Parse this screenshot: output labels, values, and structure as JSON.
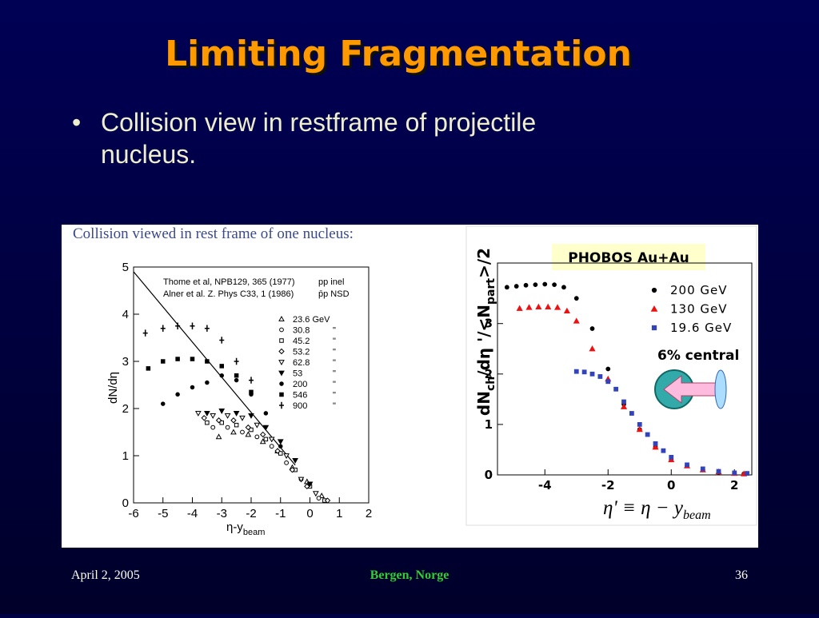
{
  "title": "Limiting Fragmentation",
  "bullets": [
    "Collision view in restframe of projectile nucleus."
  ],
  "footer": {
    "date": "April 2, 2005",
    "venue": "Bergen, Norge",
    "page": "36"
  },
  "chart_data": [
    {
      "type": "scatter",
      "caption": "Collision viewed in rest frame of one nucleus:",
      "xlabel": "η-y",
      "xlabel_sub": "beam",
      "ylabel": "dN/dη",
      "xlim": [
        -6,
        2
      ],
      "ylim": [
        0,
        5
      ],
      "xticks": [
        -6,
        -5,
        -4,
        -3,
        -2,
        -1,
        0,
        1,
        2
      ],
      "yticks": [
        0,
        1,
        2,
        3,
        4,
        5
      ],
      "notes": [
        {
          "ref": "Thome et al, NPB129, 365 (1977)",
          "system": "pp inel"
        },
        {
          "ref": "Alner et al. Z. Phys C33, 1 (1986)",
          "system": "p̄p NSD"
        }
      ],
      "legend_ditto": "\"",
      "line": {
        "x": [
          -6,
          -0.5
        ],
        "y": [
          4.9,
          0.8
        ]
      },
      "series": [
        {
          "name": "23.6 GeV",
          "marker": "triangle-up",
          "color": "#000000",
          "x": [
            -3.1,
            -2.6,
            -2.1,
            -1.6,
            -1.1,
            -0.6,
            -0.1,
            0.4
          ],
          "y": [
            1.4,
            1.5,
            1.45,
            1.3,
            1.1,
            0.75,
            0.45,
            0.15
          ]
        },
        {
          "name": "30.8",
          "marker": "circle",
          "color": "#000000",
          "x": [
            -3.3,
            -2.8,
            -2.3,
            -1.8,
            -1.3,
            -0.8,
            -0.3,
            0.3
          ],
          "y": [
            1.6,
            1.6,
            1.5,
            1.4,
            1.2,
            0.85,
            0.5,
            0.1
          ]
        },
        {
          "name": "45.2",
          "marker": "square",
          "color": "#000000",
          "x": [
            -3.5,
            -3,
            -2.5,
            -2,
            -1.5,
            -1,
            -0.5,
            0,
            0.5
          ],
          "y": [
            1.7,
            1.7,
            1.65,
            1.55,
            1.35,
            1.05,
            0.7,
            0.35,
            0.05
          ]
        },
        {
          "name": "53.2",
          "marker": "diamond",
          "color": "#000000",
          "x": [
            -3.6,
            -3.1,
            -2.6,
            -2.1,
            -1.6,
            -1.1,
            -0.6,
            -0.1,
            0.6
          ],
          "y": [
            1.8,
            1.75,
            1.75,
            1.6,
            1.45,
            1.1,
            0.7,
            0.35,
            0.05
          ]
        },
        {
          "name": "62.8",
          "marker": "triangle-down",
          "color": "#000000",
          "x": [
            -3.8,
            -3.3,
            -2.8,
            -2.3,
            -1.8,
            -1.3,
            -0.8,
            -0.3,
            0.2
          ],
          "y": [
            1.9,
            1.85,
            1.85,
            1.8,
            1.65,
            1.35,
            1.0,
            0.5,
            0.2
          ]
        },
        {
          "name": "53",
          "marker": "triangle-down-filled",
          "color": "#000000",
          "x": [
            -3.5,
            -3,
            -2.5,
            -2,
            -1.5,
            -1,
            -0.5,
            0
          ],
          "y": [
            1.9,
            1.95,
            1.9,
            1.85,
            1.6,
            1.3,
            0.9,
            0.4
          ]
        },
        {
          "name": "200",
          "marker": "dot",
          "color": "#000000",
          "x": [
            -5,
            -4.5,
            -4,
            -3.5,
            -3,
            -2.5,
            -2,
            -1.5,
            -1
          ],
          "y": [
            2.1,
            2.3,
            2.45,
            2.55,
            2.7,
            2.6,
            2.3,
            1.9,
            1.2
          ]
        },
        {
          "name": "546",
          "marker": "square-filled",
          "color": "#000000",
          "x": [
            -5.5,
            -5,
            -4.5,
            -4,
            -3.5,
            -3,
            -2.5,
            -2
          ],
          "y": [
            2.85,
            3.0,
            3.05,
            3.05,
            3.0,
            2.9,
            2.7,
            2.35
          ]
        },
        {
          "name": "900",
          "marker": "star",
          "color": "#000000",
          "x": [
            -5.6,
            -5,
            -4.5,
            -4,
            -3.5,
            -3,
            -2.5,
            -2
          ],
          "y": [
            3.6,
            3.7,
            3.75,
            3.75,
            3.7,
            3.45,
            3.0,
            2.6
          ]
        }
      ]
    },
    {
      "type": "scatter",
      "label": "PHOBOS Au+Au",
      "ylabel_parts": [
        "dN",
        "ch",
        "/dη '/<N",
        "part",
        ">/2"
      ],
      "formula": "η' ≡ η − y",
      "formula_sub": "beam",
      "annotation": "6% central",
      "xlim": [
        -5.5,
        2.55
      ],
      "ylim": [
        0,
        4.2
      ],
      "xticks": [
        -4,
        -2,
        0,
        2
      ],
      "yticks": [
        0,
        1,
        2,
        3
      ],
      "series": [
        {
          "name": "200 GeV",
          "marker": "dot",
          "color": "#000000",
          "x": [
            -5.2,
            -4.9,
            -4.6,
            -4.3,
            -4,
            -3.7,
            -3.4,
            -3,
            -2.5,
            -2,
            -1.5,
            -1,
            -0.5,
            0,
            0.5,
            1,
            1.5,
            2,
            2.3
          ],
          "y": [
            3.72,
            3.74,
            3.76,
            3.77,
            3.78,
            3.77,
            3.72,
            3.5,
            2.9,
            2.1,
            1.4,
            0.9,
            0.55,
            0.3,
            0.18,
            0.1,
            0.05,
            0.03,
            0.02
          ]
        },
        {
          "name": "130 GeV",
          "marker": "triangle-up-filled",
          "color": "#ee1111",
          "x": [
            -4.8,
            -4.5,
            -4.2,
            -3.9,
            -3.6,
            -3.3,
            -3,
            -2.5,
            -2,
            -1.5,
            -1,
            -0.5,
            0,
            0.5,
            1,
            1.5,
            2,
            2.3
          ],
          "y": [
            3.3,
            3.32,
            3.33,
            3.33,
            3.32,
            3.25,
            3.05,
            2.5,
            1.9,
            1.35,
            0.9,
            0.55,
            0.3,
            0.18,
            0.1,
            0.06,
            0.03,
            0.02
          ]
        },
        {
          "name": "19.6 GeV",
          "marker": "square-filled",
          "color": "#3344bb",
          "x": [
            -3,
            -2.75,
            -2.5,
            -2.25,
            -2,
            -1.75,
            -1.5,
            -1.25,
            -1,
            -0.75,
            -0.5,
            -0.25,
            0,
            0.5,
            1,
            1.5,
            2,
            2.4
          ],
          "y": [
            2.05,
            2.04,
            2.0,
            1.95,
            1.85,
            1.7,
            1.45,
            1.22,
            1.0,
            0.8,
            0.62,
            0.48,
            0.35,
            0.2,
            0.12,
            0.07,
            0.04,
            0.03
          ]
        }
      ]
    }
  ]
}
